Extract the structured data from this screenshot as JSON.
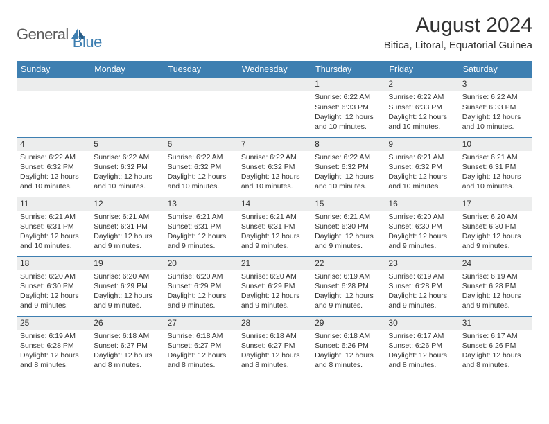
{
  "brand": {
    "a": "General",
    "b": "Blue"
  },
  "title": "August 2024",
  "location": "Bitica, Litoral, Equatorial Guinea",
  "colors": {
    "header_bg": "#3e7fb1",
    "header_fg": "#ffffff",
    "daynum_bg": "#eceded",
    "page_bg": "#ffffff",
    "text": "#333333",
    "title_color": "#323232"
  },
  "day_names": [
    "Sunday",
    "Monday",
    "Tuesday",
    "Wednesday",
    "Thursday",
    "Friday",
    "Saturday"
  ],
  "weeks": [
    [
      {
        "n": "",
        "sr": "",
        "ss": "",
        "d1": "",
        "d2": ""
      },
      {
        "n": "",
        "sr": "",
        "ss": "",
        "d1": "",
        "d2": ""
      },
      {
        "n": "",
        "sr": "",
        "ss": "",
        "d1": "",
        "d2": ""
      },
      {
        "n": "",
        "sr": "",
        "ss": "",
        "d1": "",
        "d2": ""
      },
      {
        "n": "1",
        "sr": "Sunrise: 6:22 AM",
        "ss": "Sunset: 6:33 PM",
        "d1": "Daylight: 12 hours",
        "d2": "and 10 minutes."
      },
      {
        "n": "2",
        "sr": "Sunrise: 6:22 AM",
        "ss": "Sunset: 6:33 PM",
        "d1": "Daylight: 12 hours",
        "d2": "and 10 minutes."
      },
      {
        "n": "3",
        "sr": "Sunrise: 6:22 AM",
        "ss": "Sunset: 6:33 PM",
        "d1": "Daylight: 12 hours",
        "d2": "and 10 minutes."
      }
    ],
    [
      {
        "n": "4",
        "sr": "Sunrise: 6:22 AM",
        "ss": "Sunset: 6:32 PM",
        "d1": "Daylight: 12 hours",
        "d2": "and 10 minutes."
      },
      {
        "n": "5",
        "sr": "Sunrise: 6:22 AM",
        "ss": "Sunset: 6:32 PM",
        "d1": "Daylight: 12 hours",
        "d2": "and 10 minutes."
      },
      {
        "n": "6",
        "sr": "Sunrise: 6:22 AM",
        "ss": "Sunset: 6:32 PM",
        "d1": "Daylight: 12 hours",
        "d2": "and 10 minutes."
      },
      {
        "n": "7",
        "sr": "Sunrise: 6:22 AM",
        "ss": "Sunset: 6:32 PM",
        "d1": "Daylight: 12 hours",
        "d2": "and 10 minutes."
      },
      {
        "n": "8",
        "sr": "Sunrise: 6:22 AM",
        "ss": "Sunset: 6:32 PM",
        "d1": "Daylight: 12 hours",
        "d2": "and 10 minutes."
      },
      {
        "n": "9",
        "sr": "Sunrise: 6:21 AM",
        "ss": "Sunset: 6:32 PM",
        "d1": "Daylight: 12 hours",
        "d2": "and 10 minutes."
      },
      {
        "n": "10",
        "sr": "Sunrise: 6:21 AM",
        "ss": "Sunset: 6:31 PM",
        "d1": "Daylight: 12 hours",
        "d2": "and 10 minutes."
      }
    ],
    [
      {
        "n": "11",
        "sr": "Sunrise: 6:21 AM",
        "ss": "Sunset: 6:31 PM",
        "d1": "Daylight: 12 hours",
        "d2": "and 10 minutes."
      },
      {
        "n": "12",
        "sr": "Sunrise: 6:21 AM",
        "ss": "Sunset: 6:31 PM",
        "d1": "Daylight: 12 hours",
        "d2": "and 9 minutes."
      },
      {
        "n": "13",
        "sr": "Sunrise: 6:21 AM",
        "ss": "Sunset: 6:31 PM",
        "d1": "Daylight: 12 hours",
        "d2": "and 9 minutes."
      },
      {
        "n": "14",
        "sr": "Sunrise: 6:21 AM",
        "ss": "Sunset: 6:31 PM",
        "d1": "Daylight: 12 hours",
        "d2": "and 9 minutes."
      },
      {
        "n": "15",
        "sr": "Sunrise: 6:21 AM",
        "ss": "Sunset: 6:30 PM",
        "d1": "Daylight: 12 hours",
        "d2": "and 9 minutes."
      },
      {
        "n": "16",
        "sr": "Sunrise: 6:20 AM",
        "ss": "Sunset: 6:30 PM",
        "d1": "Daylight: 12 hours",
        "d2": "and 9 minutes."
      },
      {
        "n": "17",
        "sr": "Sunrise: 6:20 AM",
        "ss": "Sunset: 6:30 PM",
        "d1": "Daylight: 12 hours",
        "d2": "and 9 minutes."
      }
    ],
    [
      {
        "n": "18",
        "sr": "Sunrise: 6:20 AM",
        "ss": "Sunset: 6:30 PM",
        "d1": "Daylight: 12 hours",
        "d2": "and 9 minutes."
      },
      {
        "n": "19",
        "sr": "Sunrise: 6:20 AM",
        "ss": "Sunset: 6:29 PM",
        "d1": "Daylight: 12 hours",
        "d2": "and 9 minutes."
      },
      {
        "n": "20",
        "sr": "Sunrise: 6:20 AM",
        "ss": "Sunset: 6:29 PM",
        "d1": "Daylight: 12 hours",
        "d2": "and 9 minutes."
      },
      {
        "n": "21",
        "sr": "Sunrise: 6:20 AM",
        "ss": "Sunset: 6:29 PM",
        "d1": "Daylight: 12 hours",
        "d2": "and 9 minutes."
      },
      {
        "n": "22",
        "sr": "Sunrise: 6:19 AM",
        "ss": "Sunset: 6:28 PM",
        "d1": "Daylight: 12 hours",
        "d2": "and 9 minutes."
      },
      {
        "n": "23",
        "sr": "Sunrise: 6:19 AM",
        "ss": "Sunset: 6:28 PM",
        "d1": "Daylight: 12 hours",
        "d2": "and 9 minutes."
      },
      {
        "n": "24",
        "sr": "Sunrise: 6:19 AM",
        "ss": "Sunset: 6:28 PM",
        "d1": "Daylight: 12 hours",
        "d2": "and 9 minutes."
      }
    ],
    [
      {
        "n": "25",
        "sr": "Sunrise: 6:19 AM",
        "ss": "Sunset: 6:28 PM",
        "d1": "Daylight: 12 hours",
        "d2": "and 8 minutes."
      },
      {
        "n": "26",
        "sr": "Sunrise: 6:18 AM",
        "ss": "Sunset: 6:27 PM",
        "d1": "Daylight: 12 hours",
        "d2": "and 8 minutes."
      },
      {
        "n": "27",
        "sr": "Sunrise: 6:18 AM",
        "ss": "Sunset: 6:27 PM",
        "d1": "Daylight: 12 hours",
        "d2": "and 8 minutes."
      },
      {
        "n": "28",
        "sr": "Sunrise: 6:18 AM",
        "ss": "Sunset: 6:27 PM",
        "d1": "Daylight: 12 hours",
        "d2": "and 8 minutes."
      },
      {
        "n": "29",
        "sr": "Sunrise: 6:18 AM",
        "ss": "Sunset: 6:26 PM",
        "d1": "Daylight: 12 hours",
        "d2": "and 8 minutes."
      },
      {
        "n": "30",
        "sr": "Sunrise: 6:17 AM",
        "ss": "Sunset: 6:26 PM",
        "d1": "Daylight: 12 hours",
        "d2": "and 8 minutes."
      },
      {
        "n": "31",
        "sr": "Sunrise: 6:17 AM",
        "ss": "Sunset: 6:26 PM",
        "d1": "Daylight: 12 hours",
        "d2": "and 8 minutes."
      }
    ]
  ]
}
